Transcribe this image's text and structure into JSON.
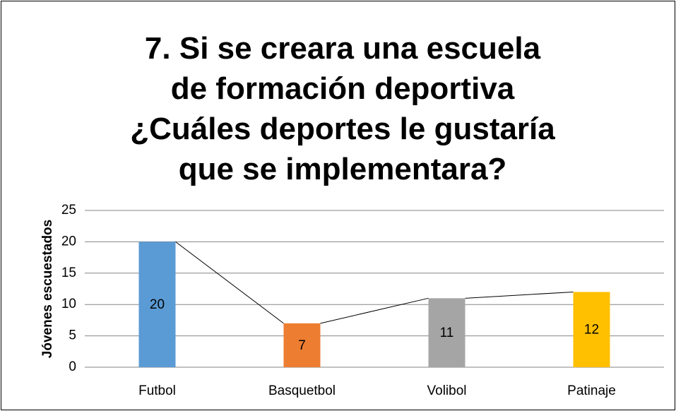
{
  "chart_data": {
    "type": "bar",
    "title": "7. Si se creara una escuela de formación deportiva ¿Cuáles deportes le gustaría que se implementara?",
    "y_label": "Jóvenes escuestados",
    "categories": [
      "Futbol",
      "Basquetbol",
      "Volibol",
      "Patinaje"
    ],
    "values": [
      20,
      7,
      11,
      12
    ],
    "colors": [
      "#5b9bd5",
      "#ed7d31",
      "#a5a5a5",
      "#ffc000"
    ],
    "ylim": [
      0,
      25
    ],
    "yticks": [
      0,
      5,
      10,
      15,
      20,
      25
    ],
    "grid": true,
    "data_labels": true,
    "series_lines": true
  }
}
